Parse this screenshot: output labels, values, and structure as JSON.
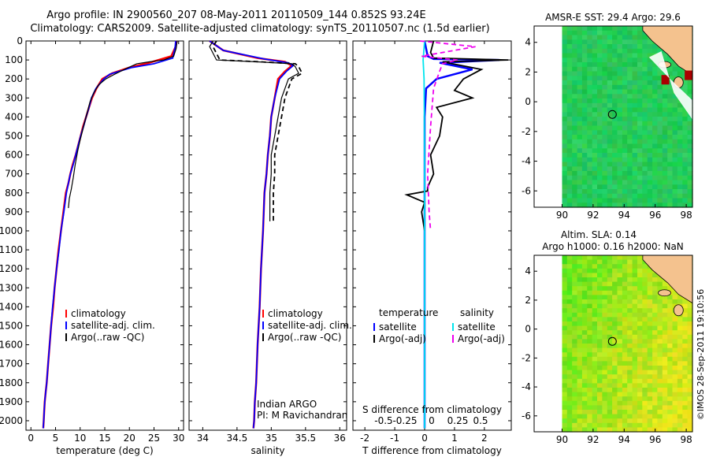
{
  "header": {
    "title_line1": "Argo profile: IN 2900560_207 08-May-2011 20110509_144 0.852S 93.24E",
    "title_line2": "Climatology: CARS2009. Satellite-adjusted climatology: synTS_20110507.nc (1.5d earlier)"
  },
  "depth_axis": {
    "range": [
      0,
      2050
    ],
    "ticks": [
      0,
      100,
      200,
      300,
      400,
      500,
      600,
      700,
      800,
      900,
      1000,
      1100,
      1200,
      1300,
      1400,
      1500,
      1600,
      1700,
      1800,
      1900,
      2000
    ]
  },
  "colors": {
    "climatology": "#ff0000",
    "satellite": "#0000ff",
    "argo": "#000000",
    "salinity_satellite": "#00e5ee",
    "salinity_argo": "#ee00ee",
    "land": "#f4c28e"
  },
  "chart_data": [
    {
      "id": "temperature",
      "type": "line",
      "xlabel": "temperature (deg C)",
      "xlim": [
        -1,
        31
      ],
      "xticks": [
        0,
        5,
        10,
        15,
        20,
        25,
        30
      ],
      "legend": [
        "climatology",
        "satellite-adj. clim.",
        "Argo(..raw -QC)"
      ],
      "series": [
        {
          "name": "climatology",
          "color": "#ff0000",
          "x": [
            29.6,
            29.4,
            28.5,
            24,
            20,
            16.5,
            14.5,
            13.3,
            12.4,
            11.8,
            11.2,
            10.6,
            10.1,
            9.6,
            9.1,
            8.5,
            8,
            7.6,
            7.1,
            6.6,
            6.1,
            5.6,
            5.2,
            4.8,
            4.5,
            4.1,
            3.8,
            3.5,
            3.2,
            3.0,
            2.8,
            2.7,
            2.6,
            2.5
          ],
          "y": [
            0,
            30,
            80,
            115,
            140,
            170,
            200,
            250,
            300,
            350,
            400,
            450,
            500,
            550,
            600,
            650,
            700,
            750,
            800,
            900,
            1000,
            1100,
            1200,
            1300,
            1400,
            1500,
            1600,
            1700,
            1800,
            1850,
            1900,
            1950,
            2000,
            2040
          ]
        },
        {
          "name": "satellite-adj. clim.",
          "color": "#0000ff",
          "x": [
            29.4,
            29.3,
            28.8,
            25,
            20.5,
            16,
            14.8,
            13.2,
            12.3,
            11.8,
            11.2,
            10.7,
            10.1,
            9.6,
            9.1,
            8.6,
            8,
            7.6,
            7.2,
            6.7,
            6.1,
            5.7,
            5.2,
            4.8,
            4.4,
            4.1,
            3.8,
            3.5,
            3.2,
            3.0,
            2.8,
            2.7,
            2.6,
            2.5
          ],
          "y": [
            0,
            30,
            90,
            120,
            140,
            175,
            200,
            250,
            300,
            350,
            400,
            450,
            500,
            550,
            600,
            650,
            700,
            750,
            800,
            900,
            1000,
            1100,
            1200,
            1300,
            1400,
            1500,
            1600,
            1700,
            1800,
            1850,
            1900,
            1950,
            2000,
            2040
          ]
        },
        {
          "name": "Argo(..raw -QC)",
          "color": "#000000",
          "x": [
            29.7,
            29.5,
            29,
            27,
            24,
            21.5,
            19,
            17,
            15.2,
            13.8,
            12.8,
            12,
            11.2,
            10.6,
            10,
            9.5,
            9,
            8.6,
            8.2,
            7.8,
            7.6
          ],
          "y": [
            0,
            40,
            80,
            100,
            110,
            120,
            150,
            175,
            200,
            230,
            270,
            320,
            400,
            460,
            520,
            580,
            650,
            720,
            780,
            830,
            880
          ]
        }
      ]
    },
    {
      "id": "salinity",
      "type": "line",
      "xlabel": "salinity",
      "xlim": [
        33.8,
        36.1
      ],
      "xticks": [
        34,
        34.5,
        35,
        35.5,
        36
      ],
      "legend": [
        "climatology",
        "satellite-adj. clim.",
        "Argo(..raw -QC)"
      ],
      "annotation": [
        "Indian ARGO",
        "PI: M Ravichandran"
      ],
      "series": [
        {
          "name": "climatology",
          "color": "#ff0000",
          "x": [
            34.1,
            34.3,
            34.8,
            35.2,
            35.3,
            35.2,
            35.1,
            35.05,
            35.0,
            34.98,
            34.95,
            34.93,
            34.9,
            34.88,
            34.85,
            34.83,
            34.8,
            34.78,
            34.76,
            34.75,
            34.74
          ],
          "y": [
            0,
            50,
            90,
            110,
            130,
            160,
            200,
            300,
            400,
            500,
            600,
            700,
            800,
            1000,
            1200,
            1400,
            1600,
            1800,
            1900,
            2000,
            2040
          ]
        },
        {
          "name": "satellite-adj. clim.",
          "color": "#0000ff",
          "x": [
            34.1,
            34.3,
            34.9,
            35.25,
            35.32,
            35.22,
            35.12,
            35.05,
            35.0,
            34.98,
            34.95,
            34.93,
            34.9,
            34.88,
            34.85,
            34.83,
            34.8,
            34.78,
            34.76,
            34.75,
            34.74
          ],
          "y": [
            0,
            50,
            95,
            115,
            130,
            160,
            200,
            300,
            400,
            500,
            600,
            700,
            800,
            1000,
            1200,
            1400,
            1600,
            1800,
            1900,
            2000,
            2040
          ]
        },
        {
          "name": "Argo(..raw -QC)",
          "color": "#000000",
          "x": [
            34.15,
            34.1,
            34.2,
            34.8,
            35.3,
            35.35,
            35.4,
            35.25,
            35.15,
            35.1,
            35.05,
            35.0,
            35.0,
            34.98,
            34.98
          ],
          "y": [
            0,
            30,
            100,
            110,
            120,
            135,
            170,
            200,
            300,
            400,
            500,
            600,
            700,
            800,
            950
          ]
        }
      ]
    },
    {
      "id": "difference",
      "type": "line",
      "xlabel": "T difference from climatology",
      "x2label": "S difference from climatology",
      "xlim": [
        -2.4,
        2.9
      ],
      "xticks": [
        -2,
        -1,
        0,
        1,
        2
      ],
      "x2ticks": [
        -0.5,
        -0.25,
        0,
        0.25,
        0.5
      ],
      "legend_temperature_title": "temperature",
      "legend_salinity_title": "salinity",
      "legend_temperature": [
        "satellite",
        "Argo(-adj)"
      ],
      "legend_salinity": [
        "satellite",
        "Argo(-adj)"
      ],
      "series": [
        {
          "name": "temperature satellite",
          "color": "#0000ff",
          "x": [
            0,
            0.1,
            0.3,
            2.5,
            0.5,
            1.6,
            0.4,
            0.05,
            0.0,
            0.0,
            0.0,
            0.0,
            0.0
          ],
          "y": [
            0,
            80,
            95,
            100,
            115,
            150,
            200,
            250,
            400,
            800,
            1200,
            1600,
            2040
          ]
        },
        {
          "name": "temperature Argo(-adj)",
          "color": "#000000",
          "x": [
            0.3,
            0.2,
            0.3,
            2.8,
            0.6,
            1.9,
            1.3,
            1.0,
            1.6,
            0.4,
            0.6,
            0.5,
            0.2,
            0.3,
            0.1,
            0.1,
            -0.6,
            0.0,
            -0.1,
            0.0
          ],
          "y": [
            0,
            60,
            90,
            100,
            110,
            150,
            200,
            260,
            300,
            350,
            400,
            500,
            600,
            700,
            770,
            790,
            810,
            850,
            900,
            1000
          ]
        },
        {
          "name": "salinity satellite",
          "color": "#00e5ee",
          "x": [
            0,
            -0.05,
            -0.02,
            -0.01,
            0.0,
            0.0,
            0.0,
            0.0
          ],
          "y": [
            0,
            100,
            200,
            400,
            800,
            1200,
            1600,
            2040
          ]
        },
        {
          "name": "salinity Argo(-adj)",
          "color": "#ee00ee",
          "x": [
            -0.15,
            1.7,
            -0.1,
            1.1,
            0.6,
            0.5,
            0.3,
            0.2,
            0.1,
            0.15,
            0.2
          ],
          "y": [
            0,
            30,
            80,
            100,
            120,
            160,
            250,
            450,
            700,
            900,
            1000
          ]
        }
      ]
    },
    {
      "id": "sst_map",
      "type": "heatmap",
      "title": "AMSR-E SST: 29.4  Argo: 29.6",
      "xticks": [
        90,
        92,
        94,
        96,
        98
      ],
      "yticks": [
        4,
        2,
        0,
        -2,
        -4,
        -6
      ],
      "xlim": [
        88.2,
        98.4
      ],
      "ylim": [
        -7.1,
        5.1
      ],
      "argo_position": {
        "lon": 93.24,
        "lat": -0.852
      }
    },
    {
      "id": "sla_map",
      "type": "heatmap",
      "title_line1": "Altim. SLA: 0.14",
      "title_line2": "Argo h1000: 0.16 h2000: NaN",
      "xticks": [
        90,
        92,
        94,
        96,
        98
      ],
      "yticks": [
        4,
        2,
        0,
        -2,
        -4,
        -6
      ],
      "xlim": [
        88.2,
        98.4
      ],
      "ylim": [
        -7.1,
        5.1
      ],
      "argo_position": {
        "lon": 93.24,
        "lat": -0.852
      }
    }
  ],
  "credit": "©IMOS 28-Sep-2011 19:10:56"
}
